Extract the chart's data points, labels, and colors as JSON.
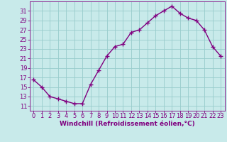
{
  "x": [
    0,
    1,
    2,
    3,
    4,
    5,
    6,
    7,
    8,
    9,
    10,
    11,
    12,
    13,
    14,
    15,
    16,
    17,
    18,
    19,
    20,
    21,
    22,
    23
  ],
  "y": [
    16.5,
    15.0,
    13.0,
    12.5,
    12.0,
    11.5,
    11.5,
    15.5,
    18.5,
    21.5,
    23.5,
    24.0,
    26.5,
    27.0,
    28.5,
    30.0,
    31.0,
    32.0,
    30.5,
    29.5,
    29.0,
    27.0,
    23.5,
    21.5
  ],
  "line_color": "#800080",
  "marker": "+",
  "bg_color": "#c8eaea",
  "grid_color": "#98cccc",
  "xlabel": "Windchill (Refroidissement éolien,°C)",
  "xlabel_color": "#800080",
  "tick_color": "#800080",
  "yticks": [
    11,
    13,
    15,
    17,
    19,
    21,
    23,
    25,
    27,
    29,
    31
  ],
  "xticks": [
    0,
    1,
    2,
    3,
    4,
    5,
    6,
    7,
    8,
    9,
    10,
    11,
    12,
    13,
    14,
    15,
    16,
    17,
    18,
    19,
    20,
    21,
    22,
    23
  ],
  "ylim": [
    10.0,
    33.0
  ],
  "xlim": [
    -0.5,
    23.5
  ],
  "spine_color": "#800080",
  "tick_fontsize": 6.0,
  "xlabel_fontsize": 6.5,
  "marker_size": 4,
  "linewidth": 1.0
}
